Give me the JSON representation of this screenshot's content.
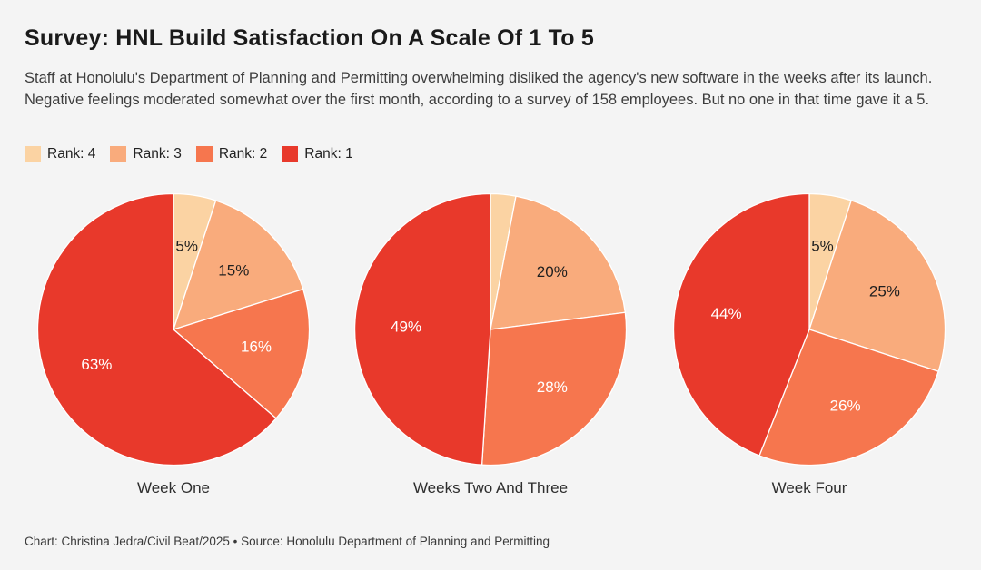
{
  "colors": {
    "background": "#f4f4f4",
    "rank1": "#e8392b",
    "rank2": "#f6764e",
    "rank3": "#f9ab7c",
    "rank4": "#fbd3a3",
    "label_dark": "#1f1f1f",
    "label_light": "#ffffff"
  },
  "header": {
    "title": "Survey: HNL Build Satisfaction On A Scale Of 1 To 5",
    "description": "Staff at Honolulu's Department of Planning and Permitting overwhelming disliked the agency's new software in the weeks after its launch. Negative feelings moderated somewhat over the first month, according to a survey of 158 employees. But no one in that time gave it a 5."
  },
  "legend": {
    "items": [
      {
        "label": "Rank: 4",
        "color": "#fbd3a3"
      },
      {
        "label": "Rank: 3",
        "color": "#f9ab7c"
      },
      {
        "label": "Rank: 2",
        "color": "#f6764e"
      },
      {
        "label": "Rank: 1",
        "color": "#e8392b"
      }
    ]
  },
  "chart_data": [
    {
      "type": "pie",
      "title": "Week One",
      "legend_position": "top-left",
      "start_angle_deg": 0,
      "direction": "clockwise",
      "slices": [
        {
          "name": "Rank: 4",
          "value": 5,
          "label": "5%",
          "color": "#fbd3a3",
          "label_color": "#1f1f1f"
        },
        {
          "name": "Rank: 3",
          "value": 15,
          "label": "15%",
          "color": "#f9ab7c",
          "label_color": "#1f1f1f"
        },
        {
          "name": "Rank: 2",
          "value": 16,
          "label": "16%",
          "color": "#f6764e",
          "label_color": "#ffffff"
        },
        {
          "name": "Rank: 1",
          "value": 63,
          "label": "63%",
          "color": "#e8392b",
          "label_color": "#ffffff"
        }
      ]
    },
    {
      "type": "pie",
      "title": "Weeks Two And Three",
      "legend_position": "top-left",
      "start_angle_deg": 0,
      "direction": "clockwise",
      "slices": [
        {
          "name": "Rank: 4",
          "value": 3,
          "label": "",
          "color": "#fbd3a3",
          "label_color": "#1f1f1f"
        },
        {
          "name": "Rank: 3",
          "value": 20,
          "label": "20%",
          "color": "#f9ab7c",
          "label_color": "#1f1f1f"
        },
        {
          "name": "Rank: 2",
          "value": 28,
          "label": "28%",
          "color": "#f6764e",
          "label_color": "#ffffff"
        },
        {
          "name": "Rank: 1",
          "value": 49,
          "label": "49%",
          "color": "#e8392b",
          "label_color": "#ffffff"
        }
      ]
    },
    {
      "type": "pie",
      "title": "Week Four",
      "legend_position": "top-left",
      "start_angle_deg": 0,
      "direction": "clockwise",
      "slices": [
        {
          "name": "Rank: 4",
          "value": 5,
          "label": "5%",
          "color": "#fbd3a3",
          "label_color": "#1f1f1f"
        },
        {
          "name": "Rank: 3",
          "value": 25,
          "label": "25%",
          "color": "#f9ab7c",
          "label_color": "#1f1f1f"
        },
        {
          "name": "Rank: 2",
          "value": 26,
          "label": "26%",
          "color": "#f6764e",
          "label_color": "#ffffff"
        },
        {
          "name": "Rank: 1",
          "value": 44,
          "label": "44%",
          "color": "#e8392b",
          "label_color": "#ffffff"
        }
      ]
    }
  ],
  "footer": {
    "credit": "Chart: Christina Jedra/Civil Beat/2025 • Source: Honolulu Department of Planning and Permitting"
  }
}
